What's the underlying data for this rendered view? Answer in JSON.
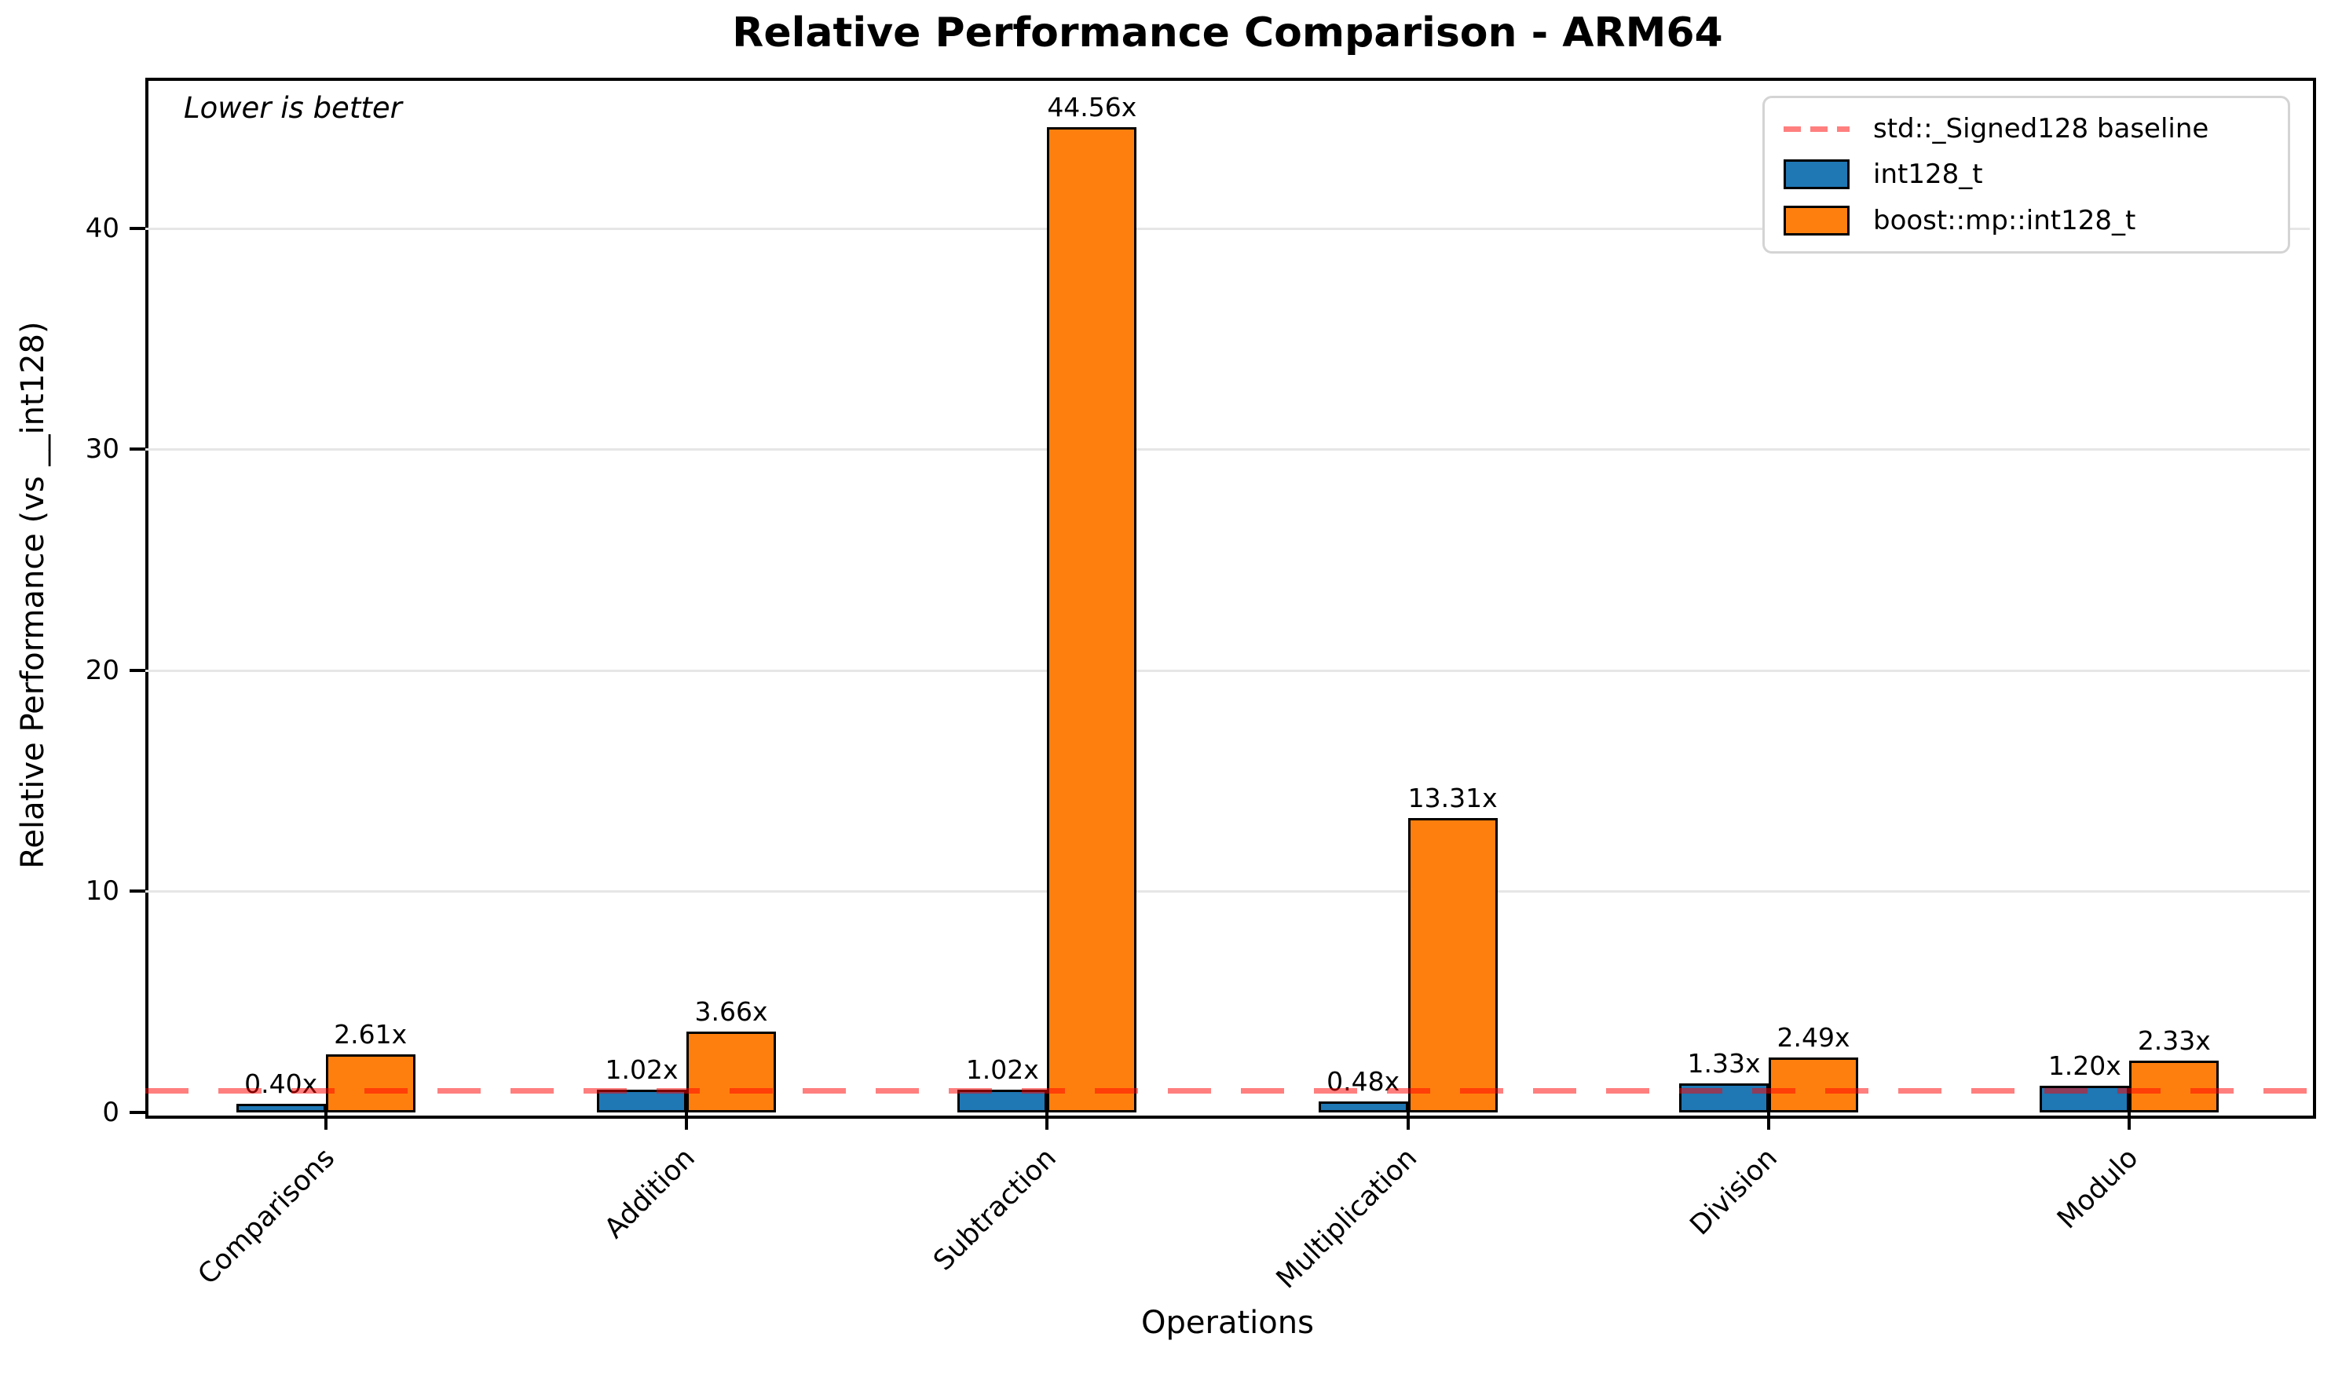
{
  "chart_data": {
    "type": "bar",
    "title": "Relative Performance Comparison - ARM64",
    "annotation": "Lower is better",
    "xlabel": "Operations",
    "ylabel": "Relative Performance (vs __int128)",
    "categories": [
      "Comparisons",
      "Addition",
      "Subtraction",
      "Multiplication",
      "Division",
      "Modulo"
    ],
    "series": [
      {
        "name": "int128_t",
        "color": "#1f77b4",
        "values": [
          0.4,
          1.02,
          1.02,
          0.48,
          1.33,
          1.2
        ],
        "labels": [
          "0.40x",
          "1.02x",
          "1.02x",
          "0.48x",
          "1.33x",
          "1.20x"
        ]
      },
      {
        "name": "boost::mp::int128_t",
        "color": "#ff7f0e",
        "values": [
          2.61,
          3.66,
          44.56,
          13.31,
          2.49,
          2.33
        ],
        "labels": [
          "2.61x",
          "3.66x",
          "44.56x",
          "13.31x",
          "2.49x",
          "2.33x"
        ]
      }
    ],
    "baseline": {
      "value": 1,
      "label": "std::_Signed128 baseline",
      "color": "#ff0000",
      "opacity": 0.5
    },
    "yticks": [
      0,
      10,
      20,
      30,
      40
    ],
    "ylim": [
      0,
      46.8
    ],
    "grid": true,
    "grid_color": "#e6e6e6",
    "bar_edge_color": "#000000",
    "legend_position": "upper right"
  }
}
